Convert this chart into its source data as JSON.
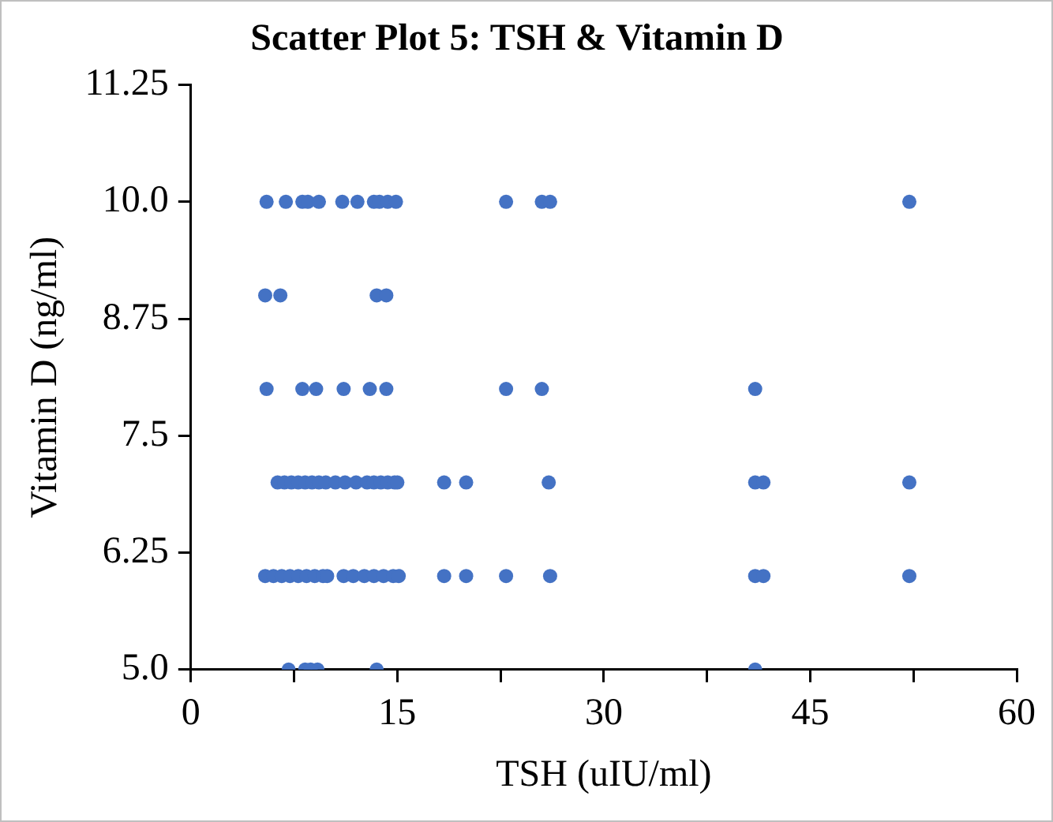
{
  "chart_data": {
    "type": "scatter",
    "title": "Scatter Plot 5: TSH & Vitamin D",
    "xlabel": "TSH (uIU/ml)",
    "ylabel": "Vitamin D (ng/ml)",
    "series": [
      {
        "color": "#4472c4",
        "x": [
          5.5,
          6.9,
          8.1,
          8.5,
          9.3,
          11.0,
          12.1,
          13.3,
          13.7,
          14.3,
          14.9,
          22.9,
          25.5,
          26.1,
          52.2,
          5.4,
          6.5,
          13.5,
          14.2,
          5.5,
          8.1,
          9.1,
          11.1,
          13.0,
          14.2,
          22.9,
          25.5,
          41.0,
          6.3,
          6.8,
          7.3,
          7.8,
          8.3,
          8.8,
          9.3,
          9.8,
          10.5,
          11.2,
          12.0,
          12.8,
          13.3,
          13.8,
          14.3,
          14.8,
          15.0,
          18.4,
          20.0,
          26.0,
          41.0,
          41.6,
          52.2,
          5.4,
          6.0,
          6.6,
          7.2,
          7.8,
          8.4,
          9.0,
          9.6,
          9.9,
          11.1,
          11.8,
          12.6,
          13.3,
          14.0,
          14.7,
          15.1,
          18.4,
          20.0,
          22.9,
          26.1,
          41.0,
          41.6,
          52.2,
          7.1,
          8.3,
          8.7,
          9.2,
          13.5,
          41.0
        ],
        "values": [
          10,
          10,
          10,
          10,
          10,
          10,
          10,
          10,
          10,
          10,
          10,
          10,
          10,
          10,
          10,
          9,
          9,
          9,
          9,
          8,
          8,
          8,
          8,
          8,
          8,
          8,
          8,
          8,
          7,
          7,
          7,
          7,
          7,
          7,
          7,
          7,
          7,
          7,
          7,
          7,
          7,
          7,
          7,
          7,
          7,
          7,
          7,
          7,
          7,
          7,
          7,
          6,
          6,
          6,
          6,
          6,
          6,
          6,
          6,
          6,
          6,
          6,
          6,
          6,
          6,
          6,
          6,
          6,
          6,
          6,
          6,
          6,
          6,
          6,
          5,
          5,
          5,
          5,
          5,
          5
        ]
      }
    ],
    "marker": "circle",
    "xlim": [
      0,
      60
    ],
    "xticks": [
      0,
      {
        "value": 7.5,
        "label": null
      },
      15,
      {
        "value": 22.5,
        "label": null
      },
      30,
      {
        "value": 37.5,
        "label": null
      },
      45,
      {
        "value": 52.5,
        "label": null
      },
      60
    ],
    "ylim": [
      5,
      11.25
    ],
    "yticks": [
      {
        "value": 5,
        "label": "5.0"
      },
      6.25,
      7.5,
      8.75,
      {
        "value": 10,
        "label": "10.0"
      },
      11.25
    ],
    "grid": false,
    "legend": false
  }
}
